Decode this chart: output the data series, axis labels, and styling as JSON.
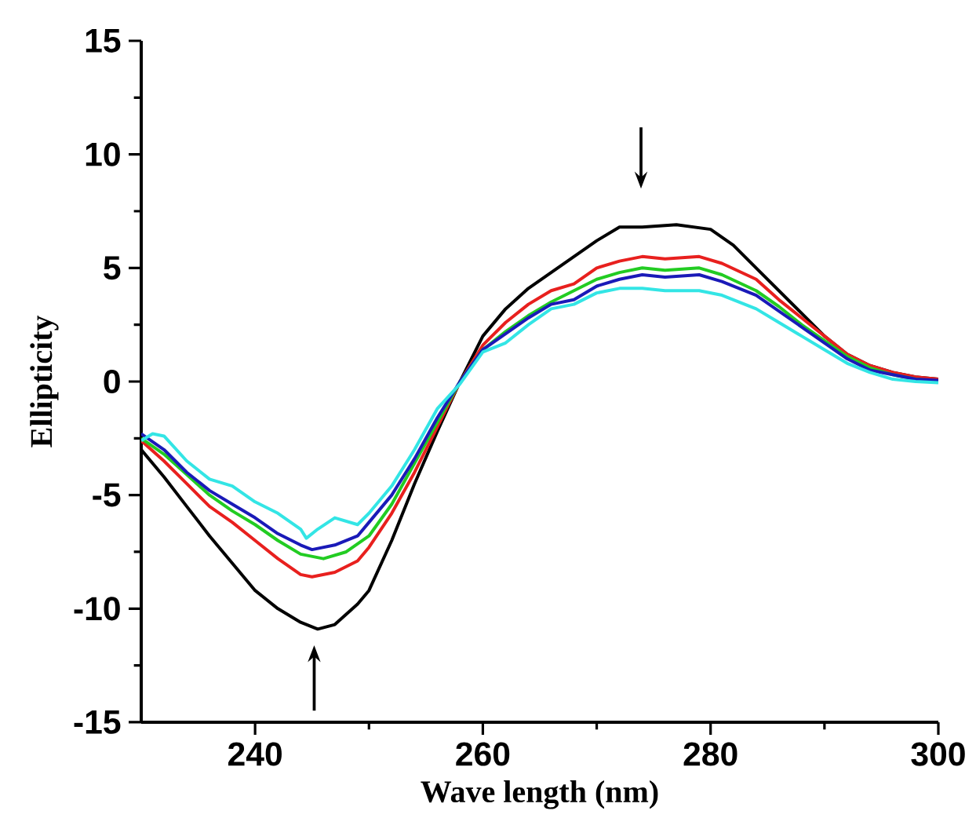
{
  "chart_data": {
    "type": "line",
    "xlabel": "**Wave length** (nm)",
    "ylabel": "Ellipticity",
    "xlim": [
      230,
      300
    ],
    "xticks": [
      240,
      260,
      280,
      300
    ],
    "ylim": [
      -15,
      15
    ],
    "yticks": [
      -15,
      -10,
      -5,
      0,
      5,
      10,
      15
    ],
    "marker": "none",
    "line_style": "solid",
    "series": [
      {
        "color": "#000000",
        "x": [
          230,
          232,
          234,
          236,
          238,
          240,
          242,
          244,
          245.5,
          247,
          249,
          250,
          252,
          254,
          256,
          258,
          260,
          262,
          264,
          266,
          268,
          270,
          272,
          274,
          277,
          280,
          282,
          284,
          286,
          288,
          290,
          292,
          294,
          296,
          298,
          300
        ],
        "values": [
          -3.0,
          -4.2,
          -5.5,
          -6.8,
          -8.0,
          -9.2,
          -10.0,
          -10.6,
          -10.9,
          -10.7,
          -9.8,
          -9.2,
          -7.0,
          -4.5,
          -2.2,
          0.0,
          2.0,
          3.2,
          4.1,
          4.8,
          5.5,
          6.2,
          6.8,
          6.8,
          6.9,
          6.7,
          6.0,
          5.0,
          4.0,
          3.0,
          2.0,
          1.2,
          0.7,
          0.4,
          0.2,
          0.1
        ]
      },
      {
        "color": "#e8201e",
        "x": [
          230,
          232,
          234,
          236,
          238,
          240,
          242,
          244,
          245,
          247,
          249,
          250,
          252,
          254,
          256,
          258,
          260,
          262,
          264,
          266,
          268,
          270,
          272,
          274,
          276,
          279,
          281,
          284,
          286,
          288,
          290,
          292,
          294,
          296,
          298,
          300
        ],
        "values": [
          -2.6,
          -3.5,
          -4.5,
          -5.5,
          -6.2,
          -7.0,
          -7.8,
          -8.5,
          -8.6,
          -8.4,
          -7.9,
          -7.3,
          -5.8,
          -4.0,
          -2.0,
          0.0,
          1.6,
          2.6,
          3.4,
          4.0,
          4.3,
          5.0,
          5.3,
          5.5,
          5.4,
          5.5,
          5.2,
          4.5,
          3.6,
          2.8,
          2.0,
          1.2,
          0.7,
          0.4,
          0.2,
          0.1
        ]
      },
      {
        "color": "#22cc22",
        "x": [
          230,
          232,
          234,
          236,
          238,
          240,
          242,
          244,
          246,
          248,
          250,
          252,
          254,
          256,
          258,
          260,
          262,
          264,
          266,
          268,
          270,
          272,
          274,
          276,
          279,
          281,
          284,
          286,
          288,
          290,
          292,
          294,
          296,
          298,
          300
        ],
        "values": [
          -2.5,
          -3.2,
          -4.1,
          -5.0,
          -5.7,
          -6.3,
          -7.0,
          -7.6,
          -7.8,
          -7.5,
          -6.8,
          -5.4,
          -3.6,
          -1.8,
          0.0,
          1.4,
          2.2,
          2.9,
          3.5,
          4.0,
          4.5,
          4.8,
          5.0,
          4.9,
          5.0,
          4.7,
          4.0,
          3.3,
          2.5,
          1.8,
          1.1,
          0.6,
          0.3,
          0.1,
          0.0
        ]
      },
      {
        "color": "#1a1ab8",
        "x": [
          230,
          232,
          234,
          236,
          238,
          240,
          242,
          244,
          245,
          247,
          249,
          250,
          252,
          254,
          256,
          258,
          260,
          262,
          264,
          266,
          268,
          270,
          272,
          274,
          276,
          279,
          281,
          284,
          286,
          288,
          290,
          292,
          294,
          296,
          298,
          300
        ],
        "values": [
          -2.3,
          -3.0,
          -4.0,
          -4.8,
          -5.4,
          -6.0,
          -6.7,
          -7.2,
          -7.4,
          -7.2,
          -6.8,
          -6.2,
          -5.0,
          -3.4,
          -1.6,
          0.0,
          1.4,
          2.1,
          2.8,
          3.4,
          3.6,
          4.2,
          4.5,
          4.7,
          4.6,
          4.7,
          4.4,
          3.8,
          3.1,
          2.4,
          1.7,
          1.0,
          0.5,
          0.3,
          0.1,
          0.05
        ]
      },
      {
        "color": "#33e5e5",
        "x": [
          230,
          231,
          232,
          234,
          236,
          238,
          240,
          242,
          244,
          244.5,
          245.5,
          247,
          249,
          250,
          252,
          254,
          256,
          258,
          260,
          262,
          264,
          266,
          268,
          270,
          272,
          274,
          276,
          279,
          281,
          284,
          286,
          288,
          290,
          292,
          294,
          296,
          298,
          300
        ],
        "values": [
          -2.6,
          -2.3,
          -2.4,
          -3.5,
          -4.3,
          -4.6,
          -5.3,
          -5.8,
          -6.5,
          -6.9,
          -6.5,
          -6.0,
          -6.3,
          -5.8,
          -4.6,
          -3.0,
          -1.2,
          -0.1,
          1.3,
          1.7,
          2.5,
          3.2,
          3.4,
          3.9,
          4.1,
          4.1,
          4.0,
          4.0,
          3.8,
          3.2,
          2.6,
          2.0,
          1.4,
          0.8,
          0.4,
          0.1,
          0.0,
          -0.05
        ]
      }
    ]
  }
}
